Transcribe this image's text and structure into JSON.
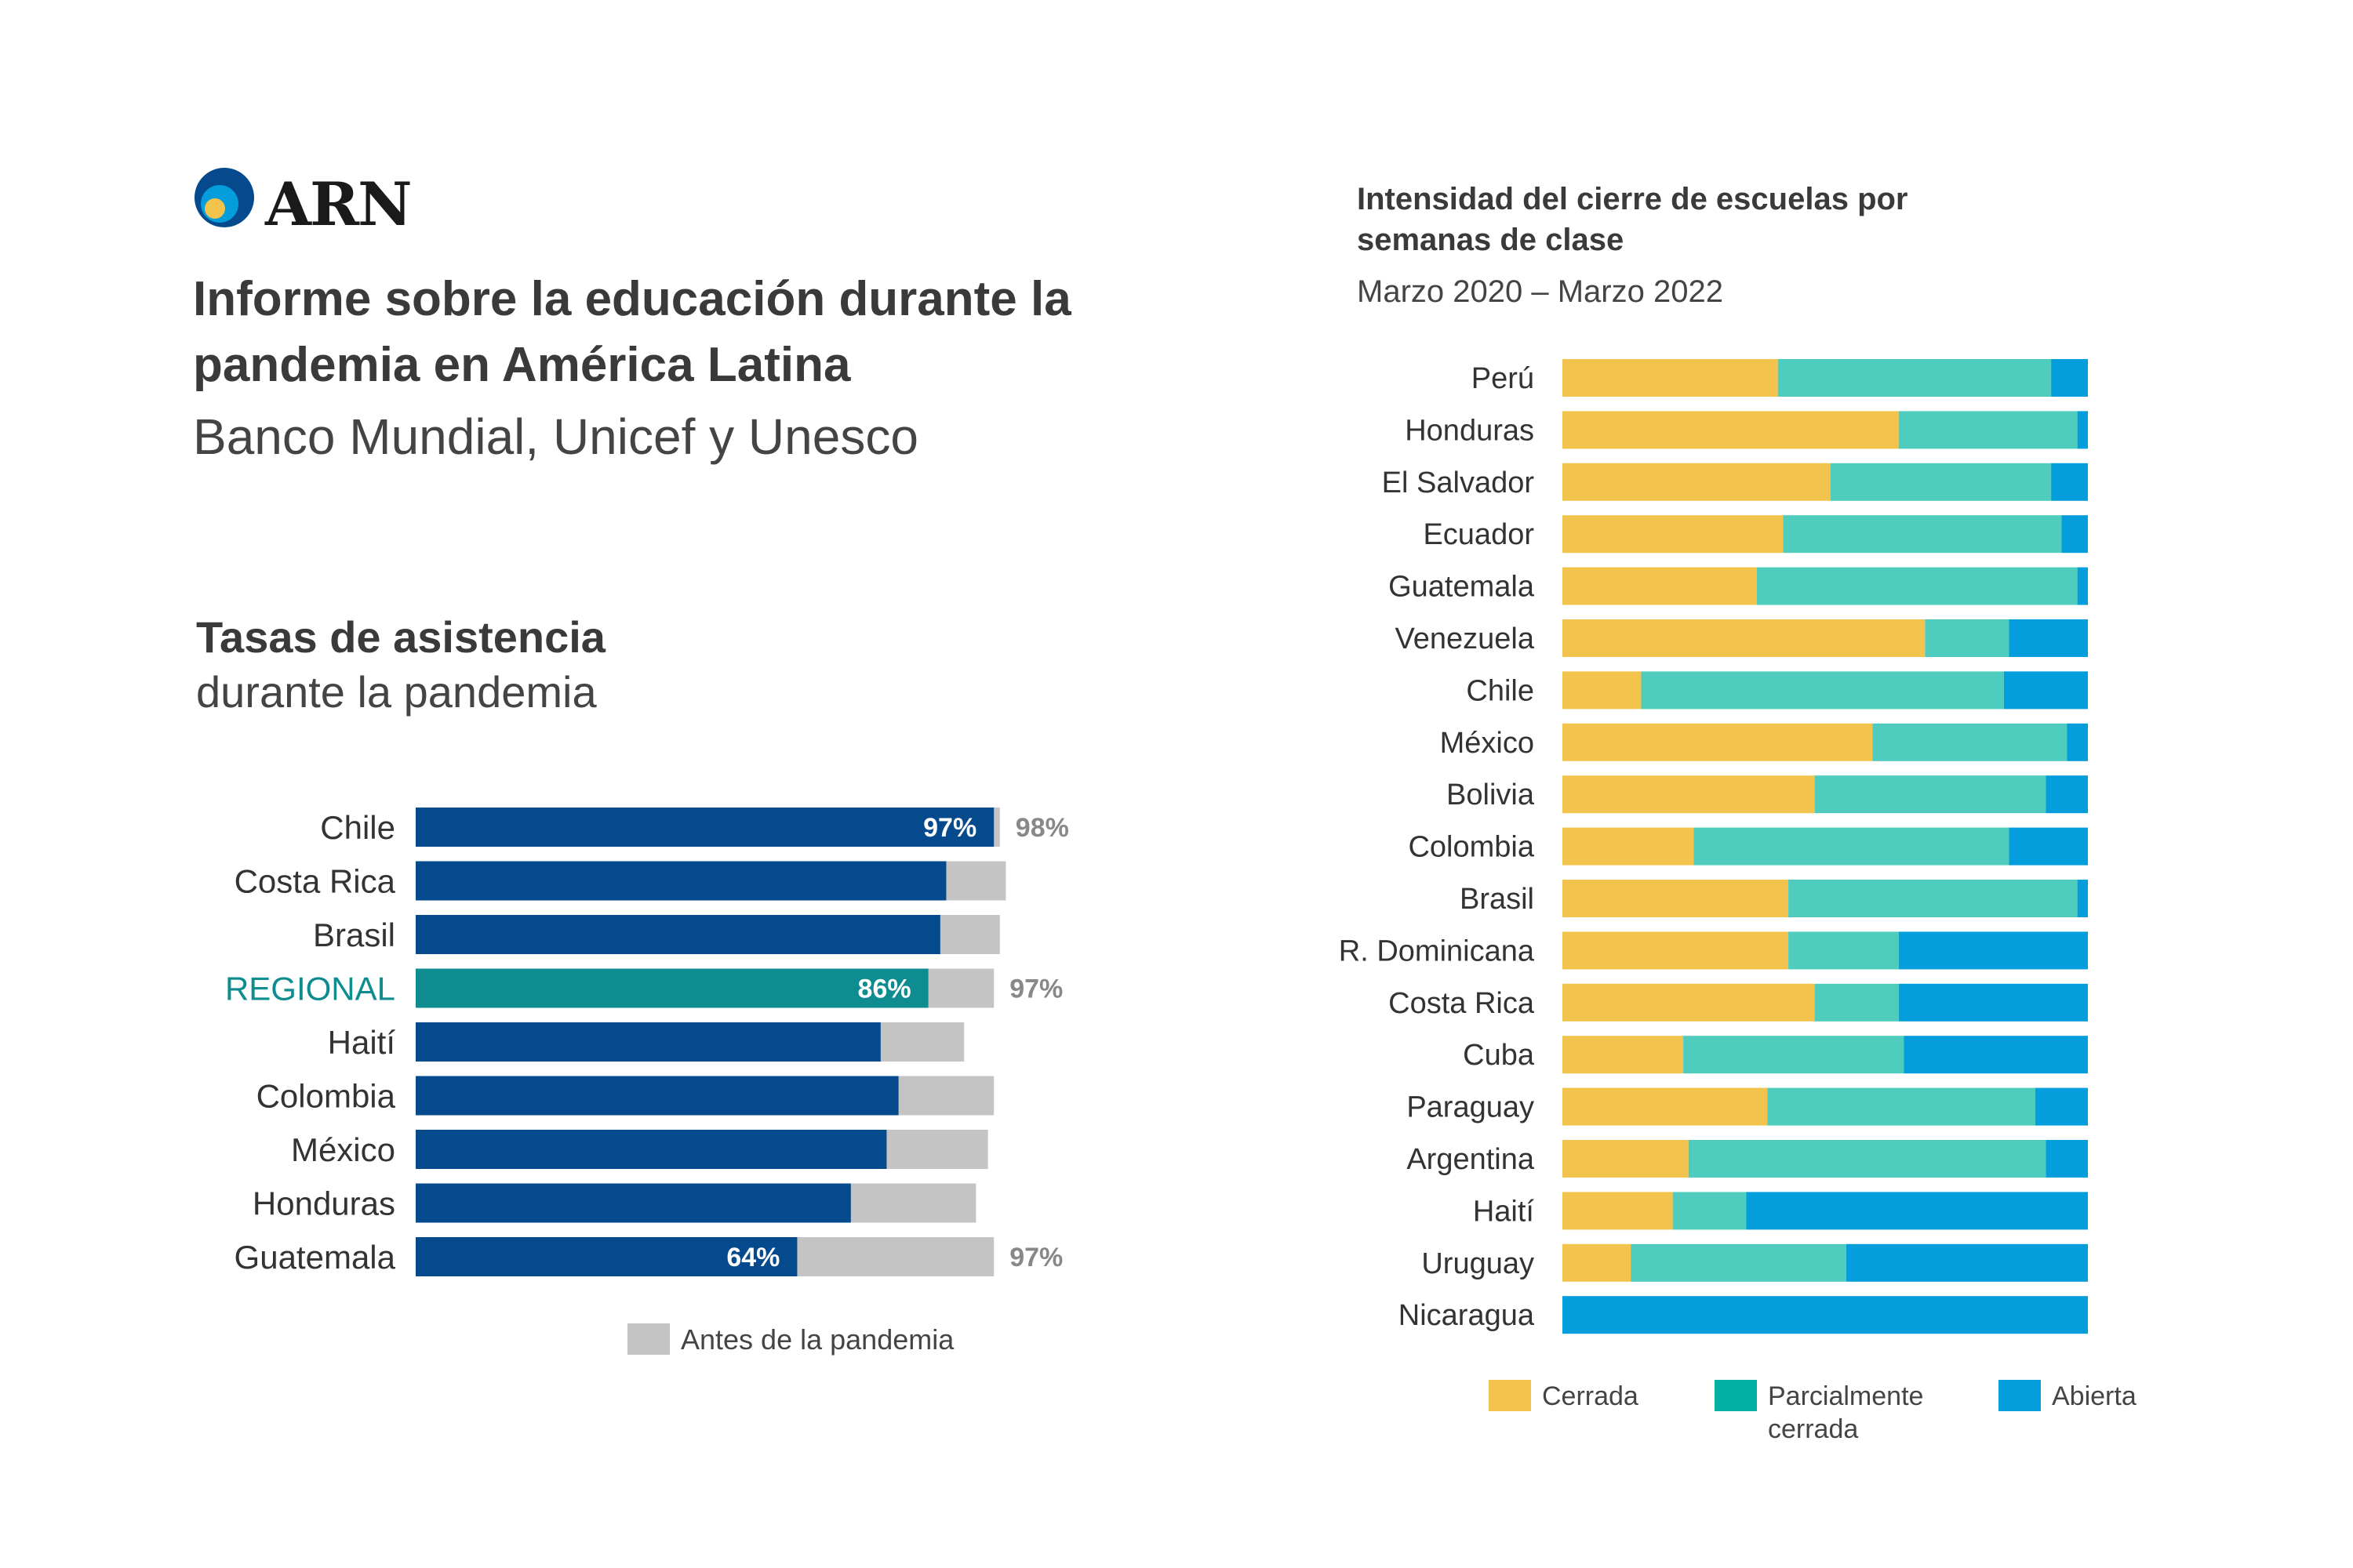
{
  "logo": {
    "text": "ARN"
  },
  "header": {
    "title": "Informe sobre la educación durante la pandemia en América Latina",
    "subtitle": "Banco Mundial, Unicef y Unesco"
  },
  "left_chart": {
    "title": "Tasas de asistencia",
    "subtitle": "durante la pandemia",
    "legend": "Antes de la pandemia"
  },
  "right_chart": {
    "title": "Intensidad del cierre de escuelas por semanas de clase",
    "subtitle": "Marzo 2020 – Marzo 2022",
    "legend": {
      "closed": "Cerrada",
      "partial": "Parcialmente cerrada",
      "open": "Abierta"
    }
  },
  "colors": {
    "during": "#044a8c",
    "regional": "#0e8c8f",
    "before": "#c4c4c4",
    "closed": "#f2c44d",
    "partial": "#4ecdbe",
    "open": "#039edb",
    "legend_partial": "#00b0a0",
    "regional_label": "#0e8c8f"
  },
  "chart_data": [
    {
      "type": "bar",
      "orientation": "horizontal",
      "categories": [
        "Chile",
        "Costa Rica",
        "Brasil",
        "REGIONAL",
        "Haití",
        "Colombia",
        "México",
        "Honduras",
        "Guatemala"
      ],
      "series": [
        {
          "name": "",
          "values": [
            97,
            89,
            88,
            86,
            78,
            81,
            79,
            73,
            64
          ]
        },
        {
          "name": "Antes de la pandemia",
          "values": [
            98,
            99,
            98,
            97,
            92,
            97,
            96,
            94,
            97
          ]
        }
      ],
      "data_labels": [
        {
          "category": "Chile",
          "during": "97%",
          "before": "98%"
        },
        {
          "category": "REGIONAL",
          "during": "86%",
          "before": "97%"
        },
        {
          "category": "Guatemala",
          "during": "64%",
          "before": "97%"
        }
      ],
      "xlim": [
        0,
        100
      ]
    },
    {
      "type": "bar",
      "orientation": "horizontal",
      "stacked": true,
      "normalized": true,
      "categories": [
        "Perú",
        "Honduras",
        "El Salvador",
        "Ecuador",
        "Guatemala",
        "Venezuela",
        "Chile",
        "México",
        "Bolivia",
        "Colombia",
        "Brasil",
        "R. Dominicana",
        "Costa Rica",
        "Cuba",
        "Paraguay",
        "Argentina",
        "Haití",
        "Uruguay",
        "Nicaragua"
      ],
      "series": [
        {
          "name": "Cerrada",
          "values": [
            41,
            64,
            51,
            42,
            37,
            69,
            15,
            59,
            48,
            25,
            43,
            43,
            48,
            23,
            39,
            24,
            21,
            13,
            0
          ]
        },
        {
          "name": "Parcialmente cerrada",
          "values": [
            52,
            34,
            42,
            53,
            61,
            16,
            69,
            37,
            44,
            60,
            55,
            21,
            16,
            42,
            51,
            68,
            14,
            41,
            0
          ]
        },
        {
          "name": "Abierta",
          "values": [
            7,
            2,
            7,
            5,
            2,
            15,
            16,
            4,
            8,
            15,
            2,
            36,
            36,
            35,
            10,
            8,
            65,
            46,
            100
          ]
        }
      ],
      "xlim": [
        0,
        100
      ]
    }
  ]
}
